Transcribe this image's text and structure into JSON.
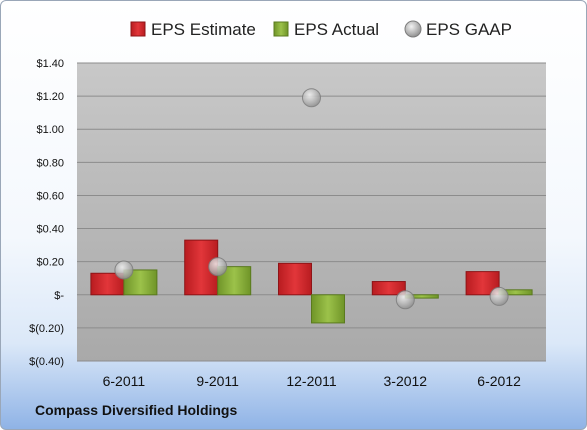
{
  "company": "Compass Diversified Holdings",
  "colors": {
    "estimate": "#d7262b",
    "actual": "#8cb23c",
    "gaap": "#b8b8b8",
    "plot_bg": "#bdbdbd"
  },
  "chart_data": {
    "type": "bar",
    "categories": [
      "6-2011",
      "9-2011",
      "12-2011",
      "3-2012",
      "6-2012"
    ],
    "series": [
      {
        "name": "EPS Estimate",
        "kind": "bar",
        "values": [
          0.13,
          0.33,
          0.19,
          0.08,
          0.14
        ]
      },
      {
        "name": "EPS Actual",
        "kind": "bar",
        "values": [
          0.15,
          0.17,
          -0.17,
          -0.02,
          0.03
        ]
      },
      {
        "name": "EPS GAAP",
        "kind": "point",
        "values": [
          0.15,
          0.17,
          1.19,
          -0.03,
          -0.01
        ]
      }
    ],
    "y_ticks": [
      -0.4,
      -0.2,
      0,
      0.2,
      0.4,
      0.6,
      0.8,
      1.0,
      1.2,
      1.4
    ],
    "y_tick_labels": [
      "$(0.40)",
      "$(0.20)",
      "$-",
      "$0.20",
      "$0.40",
      "$0.60",
      "$0.80",
      "$1.00",
      "$1.20",
      "$1.40"
    ],
    "ylim": [
      -0.4,
      1.4
    ],
    "grid": true,
    "legend_position": "top"
  }
}
